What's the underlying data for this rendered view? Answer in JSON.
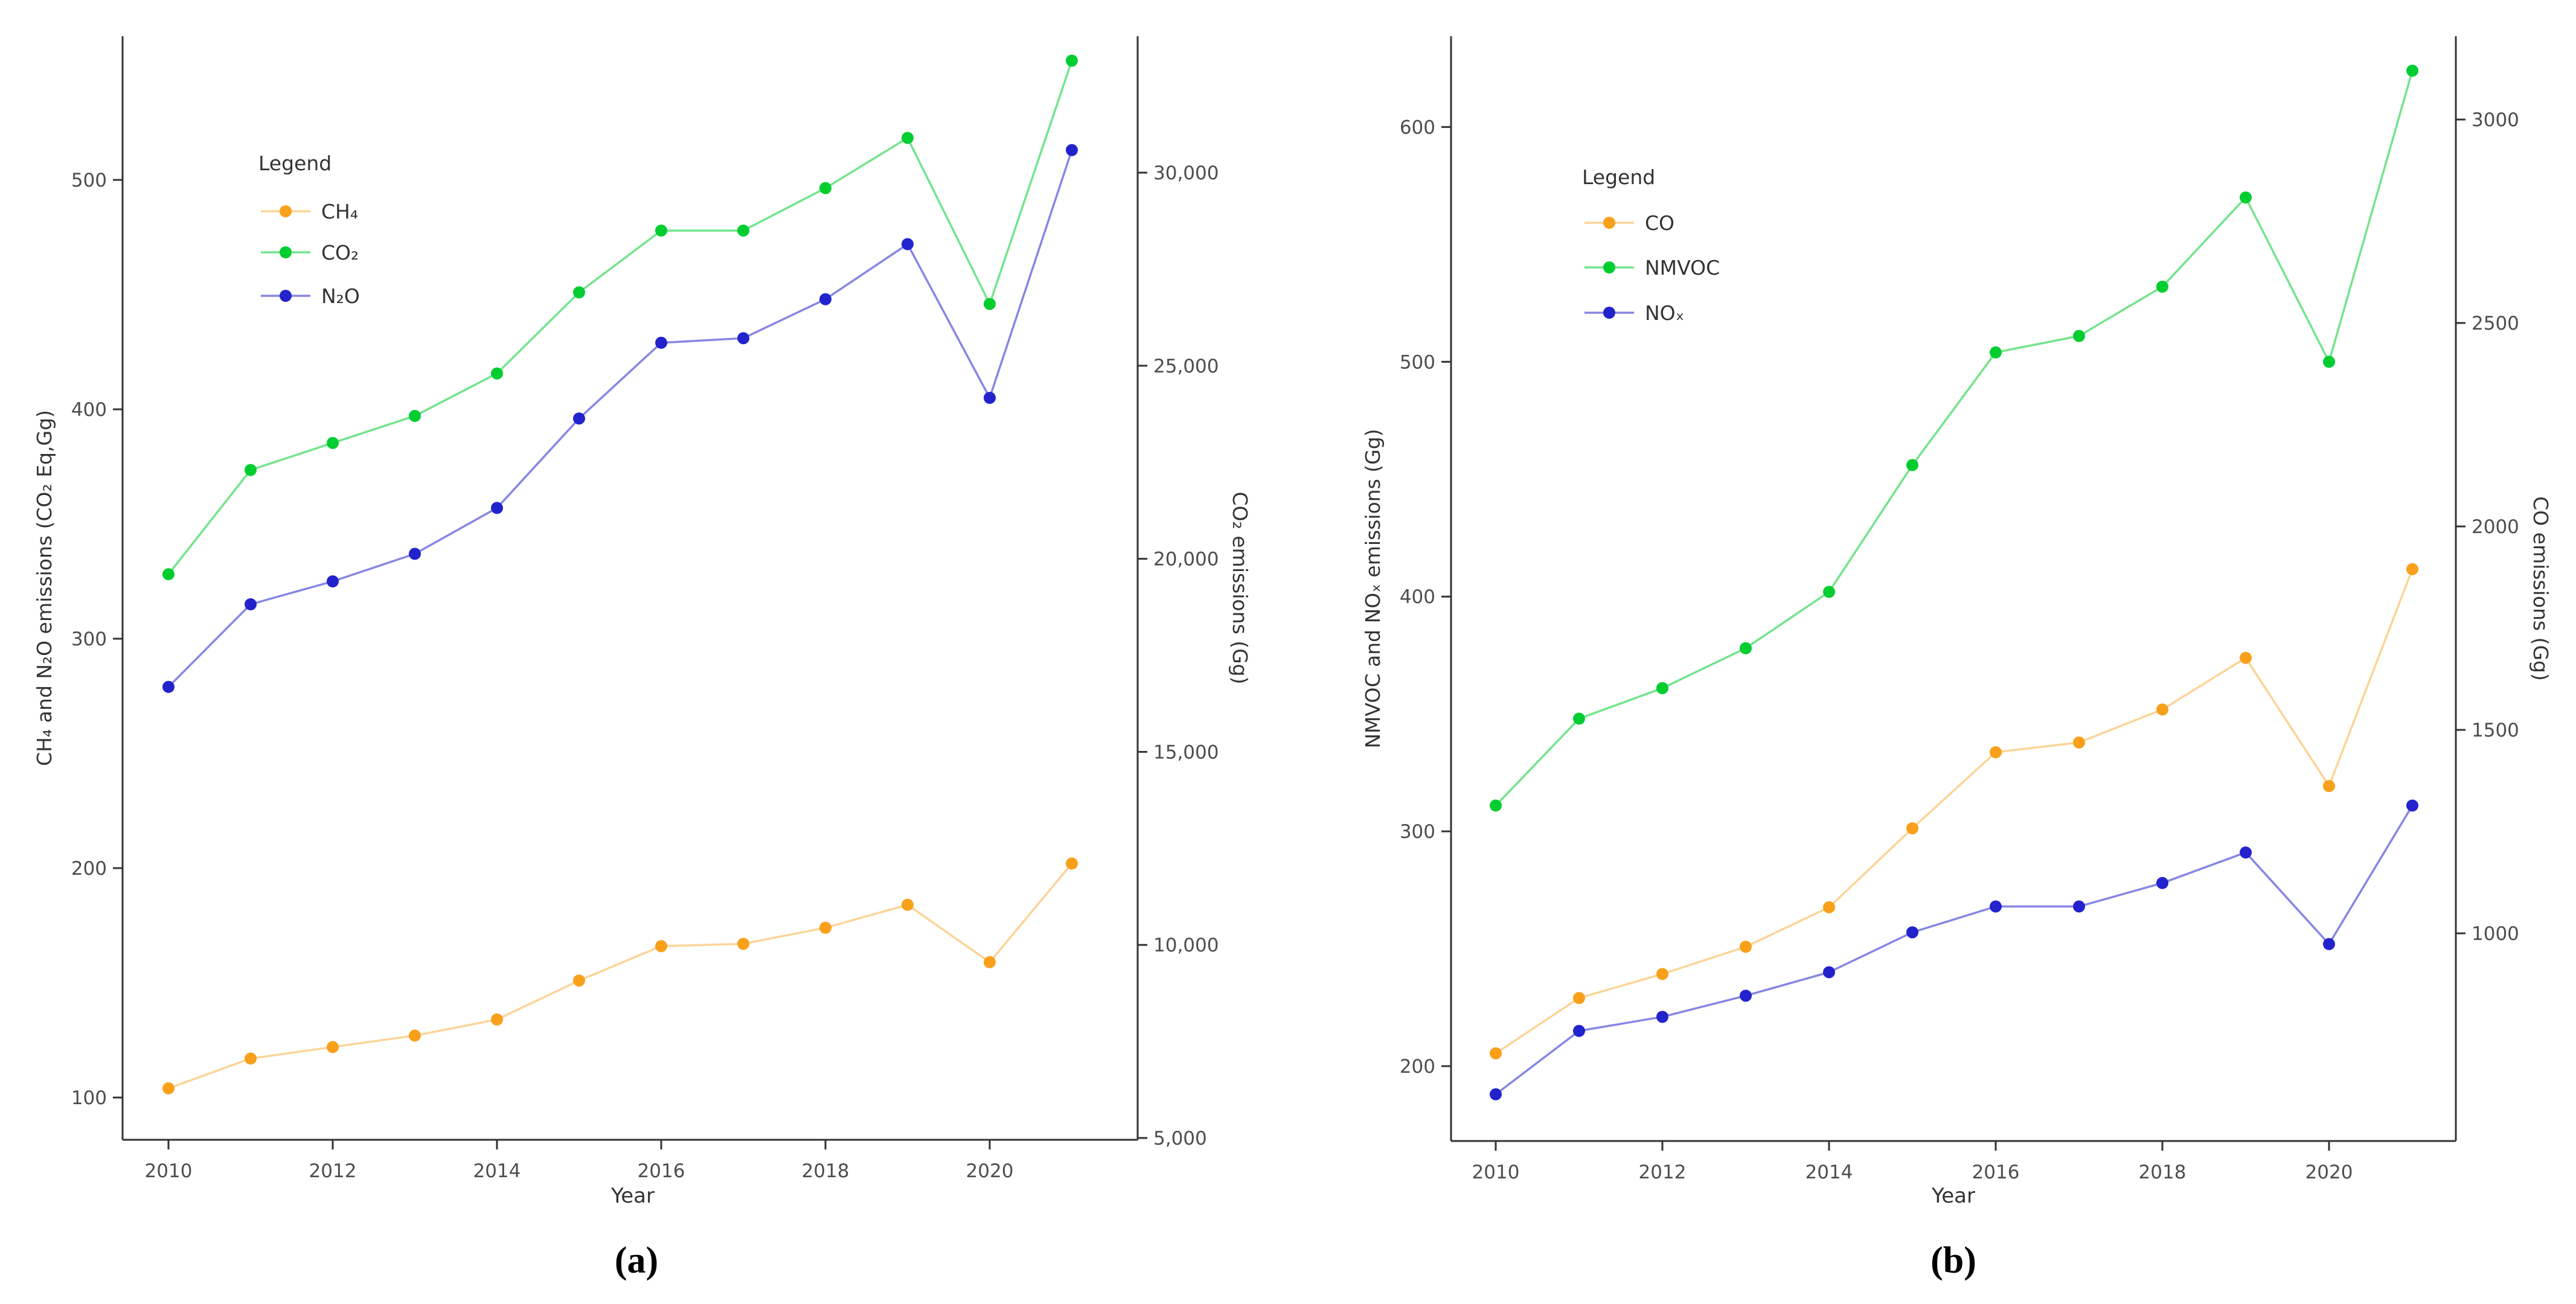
{
  "figure": {
    "caption_a": "(a)",
    "caption_b": "(b)",
    "background": "#ffffff",
    "axis_line_color": "#333333",
    "tick_text_color": "#4d4d4d"
  },
  "chart_data": [
    {
      "id": "a",
      "type": "line",
      "x": [
        2010,
        2011,
        2012,
        2013,
        2014,
        2015,
        2016,
        2017,
        2018,
        2019,
        2020,
        2021
      ],
      "x_ticks": [
        2010,
        2012,
        2014,
        2016,
        2018,
        2020
      ],
      "xlabel": "Year",
      "left_axis": {
        "label": "CH₄ and N₂O emissions (CO₂ Eq,Gg)",
        "ticks": [
          100,
          200,
          300,
          400,
          500
        ],
        "range": [
          82,
          563
        ],
        "tick_format": "plain"
      },
      "right_axis": {
        "label": "CO₂ emissions (Gg)",
        "ticks": [
          5000,
          10000,
          15000,
          20000,
          25000,
          30000
        ],
        "range": [
          5000,
          34000
        ],
        "tick_format": "comma"
      },
      "legend": {
        "title": "Legend",
        "position": "top-left-inside"
      },
      "series": [
        {
          "name": "CH₄",
          "axis": "left",
          "color": "#F9A01B",
          "line_opacity": 0.45,
          "values": [
            104,
            117,
            122,
            127,
            134,
            151,
            166,
            167,
            174,
            184,
            159,
            202
          ]
        },
        {
          "name": "CO₂",
          "axis": "right",
          "color": "#00CE30",
          "line_opacity": 0.55,
          "values": [
            19600,
            22300,
            23000,
            23700,
            24800,
            26900,
            28500,
            28500,
            29600,
            30900,
            26600,
            32900
          ]
        },
        {
          "name": "N₂O",
          "axis": "left",
          "color": "#2323CE",
          "line_opacity": 0.55,
          "values": [
            279,
            315,
            325,
            337,
            357,
            396,
            429,
            431,
            448,
            472,
            405,
            513
          ]
        }
      ]
    },
    {
      "id": "b",
      "type": "line",
      "x": [
        2010,
        2011,
        2012,
        2013,
        2014,
        2015,
        2016,
        2017,
        2018,
        2019,
        2020,
        2021
      ],
      "x_ticks": [
        2010,
        2012,
        2014,
        2016,
        2018,
        2020
      ],
      "xlabel": "Year",
      "left_axis": {
        "label": "NMVOC and NOₓ emissions (Gg)",
        "ticks": [
          200,
          300,
          400,
          500,
          600
        ],
        "range": [
          168,
          639
        ],
        "tick_format": "plain"
      },
      "right_axis": {
        "label": "CO emissions (Gg)",
        "ticks": [
          1000,
          1500,
          2000,
          2500,
          3000
        ],
        "range": [
          900,
          3100
        ],
        "tick_format": "plain"
      },
      "legend": {
        "title": "Legend",
        "position": "top-left-inside"
      },
      "series": [
        {
          "name": "CO",
          "axis": "right",
          "color": "#F9A01B",
          "line_opacity": 0.45,
          "values": [
            705,
            841,
            900,
            967,
            1064,
            1258,
            1445,
            1469,
            1550,
            1677,
            1362,
            1895
          ]
        },
        {
          "name": "NMVOC",
          "axis": "left",
          "color": "#00CE30",
          "line_opacity": 0.55,
          "values": [
            311,
            348,
            361,
            378,
            402,
            456,
            504,
            511,
            532,
            570,
            500,
            624
          ]
        },
        {
          "name": "NOₓ",
          "axis": "left",
          "color": "#2323CE",
          "line_opacity": 0.55,
          "values": [
            188,
            215,
            221,
            230,
            240,
            257,
            268,
            268,
            278,
            291,
            252,
            311
          ]
        }
      ]
    }
  ]
}
